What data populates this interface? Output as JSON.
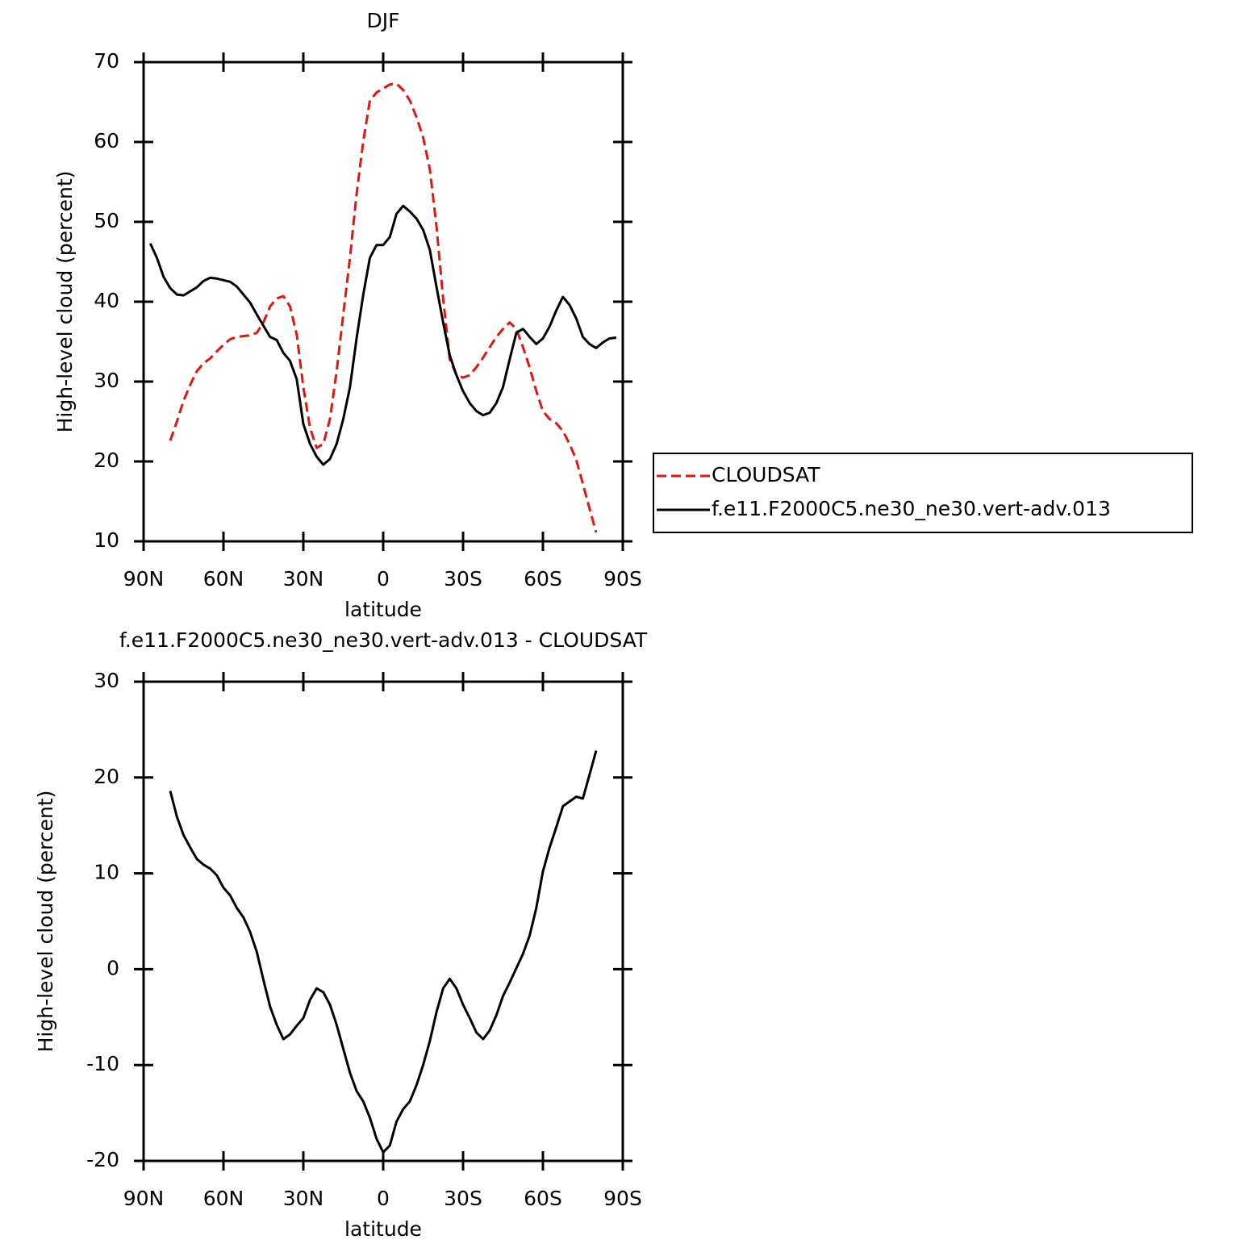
{
  "chart_data": [
    {
      "type": "line",
      "title": "DJF",
      "xlabel": "latitude",
      "ylabel": "High-level cloud (percent)",
      "x": [
        87.5,
        85,
        82.5,
        80,
        77.5,
        75,
        72.5,
        70,
        67.5,
        65,
        62.5,
        60,
        57.5,
        55,
        52.5,
        50,
        47.5,
        45,
        42.5,
        40,
        37.5,
        35,
        32.5,
        30,
        27.5,
        25,
        22.5,
        20,
        17.5,
        15,
        12.5,
        10,
        7.5,
        5,
        2.5,
        0,
        -2.5,
        -5,
        -7.5,
        -10,
        -12.5,
        -15,
        -17.5,
        -20,
        -22.5,
        -25,
        -27.5,
        -30,
        -32.5,
        -35,
        -37.5,
        -40,
        -42.5,
        -45,
        -47.5,
        -50,
        -52.5,
        -55,
        -57.5,
        -60,
        -62.5,
        -65,
        -67.5,
        -70,
        -72.5,
        -75,
        -77.5,
        -80,
        -82.5,
        -85,
        -87.5
      ],
      "series": [
        {
          "name": "CLOUDSAT",
          "color": "#e8140c",
          "dash": true,
          "values": [
            null,
            null,
            null,
            22.6,
            25.0,
            27.6,
            29.6,
            31.3,
            32.3,
            32.9,
            33.8,
            34.6,
            35.3,
            35.6,
            35.7,
            35.8,
            36.1,
            37.4,
            39.4,
            40.4,
            40.7,
            39.4,
            35.9,
            29.3,
            24.2,
            21.7,
            22.2,
            25.3,
            31.3,
            38.4,
            45.5,
            53.5,
            60.1,
            65.2,
            66.2,
            66.7,
            67.2,
            67.3,
            66.5,
            65.2,
            63.1,
            60.6,
            56.6,
            49.5,
            40.4,
            32.8,
            30.8,
            30.5,
            30.8,
            31.8,
            33.0,
            34.3,
            35.6,
            36.6,
            37.4,
            36.6,
            34.3,
            31.8,
            28.8,
            26.3,
            25.3,
            24.8,
            23.8,
            22.2,
            20.2,
            17.2,
            14.1,
            11.1,
            null,
            null,
            null
          ]
        },
        {
          "name": "f.e11.F2000C5.ne30_ne30.vert-adv.013",
          "color": "#000000",
          "dash": false,
          "values": [
            47.3,
            45.5,
            43.1,
            41.7,
            40.9,
            40.8,
            41.3,
            41.8,
            42.6,
            43.0,
            42.9,
            42.7,
            42.5,
            41.9,
            40.9,
            39.9,
            38.4,
            37.0,
            35.6,
            35.2,
            33.6,
            32.6,
            30.3,
            24.7,
            22.2,
            20.6,
            19.6,
            20.3,
            22.2,
            25.3,
            29.3,
            35.4,
            40.9,
            45.5,
            47.1,
            47.1,
            48.1,
            51.0,
            52.0,
            51.3,
            50.4,
            49.0,
            46.5,
            41.9,
            37.4,
            33.3,
            30.8,
            28.8,
            27.3,
            26.3,
            25.8,
            26.1,
            27.3,
            29.3,
            32.8,
            36.1,
            36.6,
            35.6,
            34.7,
            35.4,
            36.9,
            38.9,
            40.6,
            39.6,
            37.9,
            35.6,
            34.7,
            34.2,
            34.9,
            35.4,
            35.5
          ]
        }
      ],
      "xlim": [
        90,
        -90
      ],
      "xticks": [
        {
          "value": 90,
          "label": "90N"
        },
        {
          "value": 60,
          "label": "60N"
        },
        {
          "value": 30,
          "label": "30N"
        },
        0,
        {
          "value": -30,
          "label": "30S"
        },
        {
          "value": -60,
          "label": "60S"
        },
        {
          "value": -90,
          "label": "90S"
        }
      ],
      "ylim": [
        10,
        70
      ],
      "yticks": [
        10,
        20,
        30,
        40,
        50,
        60,
        70
      ],
      "legend": "right"
    },
    {
      "type": "line",
      "title": "f.e11.F2000C5.ne30_ne30.vert-adv.013 - CLOUDSAT",
      "xlabel": "latitude",
      "ylabel": "High-level cloud (percent)",
      "x": [
        80,
        77.5,
        75,
        72.5,
        70,
        67.5,
        65,
        62.5,
        60,
        57.5,
        55,
        52.5,
        50,
        47.5,
        45,
        42.5,
        40,
        37.5,
        35,
        32.5,
        30,
        27.5,
        25,
        22.5,
        20,
        17.5,
        15,
        12.5,
        10,
        7.5,
        5,
        2.5,
        0,
        -2.5,
        -5,
        -7.5,
        -10,
        -12.5,
        -15,
        -17.5,
        -20,
        -22.5,
        -25,
        -27.5,
        -30,
        -32.5,
        -35,
        -37.5,
        -40,
        -42.5,
        -45,
        -47.5,
        -50,
        -52.5,
        -55,
        -57.5,
        -60,
        -62.5,
        -65,
        -67.5,
        -70,
        -72.5,
        -75,
        -77.5,
        -80
      ],
      "values": [
        18.6,
        15.9,
        14.0,
        12.7,
        11.5,
        10.9,
        10.5,
        9.8,
        8.5,
        7.7,
        6.4,
        5.4,
        3.9,
        1.8,
        -1.1,
        -3.9,
        -5.8,
        -7.3,
        -6.8,
        -5.9,
        -5.1,
        -3.2,
        -2.0,
        -2.4,
        -3.7,
        -5.8,
        -8.3,
        -10.8,
        -12.7,
        -13.8,
        -15.5,
        -17.7,
        -19.1,
        -18.4,
        -15.9,
        -14.6,
        -13.8,
        -12.1,
        -10.0,
        -7.5,
        -4.5,
        -2.0,
        -1.0,
        -2.0,
        -3.7,
        -5.1,
        -6.6,
        -7.3,
        -6.4,
        -4.8,
        -2.8,
        -1.4,
        0.1,
        1.6,
        3.5,
        6.4,
        10.2,
        12.7,
        14.8,
        17.0,
        17.5,
        18.0,
        17.8,
        20.3,
        22.8
      ],
      "color": "#000000",
      "xlim": [
        90,
        -90
      ],
      "xticks": [
        {
          "value": 90,
          "label": "90N"
        },
        {
          "value": 60,
          "label": "60N"
        },
        {
          "value": 30,
          "label": "30N"
        },
        0,
        {
          "value": -30,
          "label": "30S"
        },
        {
          "value": -60,
          "label": "60S"
        },
        {
          "value": -90,
          "label": "90S"
        }
      ],
      "ylim": [
        -20,
        30
      ],
      "yticks": [
        -20,
        -10,
        0,
        10,
        20,
        30
      ]
    }
  ]
}
